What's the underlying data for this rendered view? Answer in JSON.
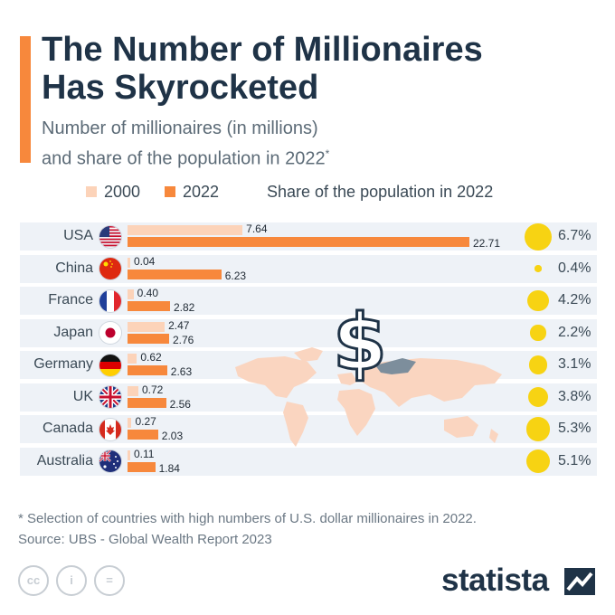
{
  "header": {
    "title_line1": "The Number of Millionaires",
    "title_line2": "Has Skyrocketed",
    "subtitle_line1": "Number of millionaires (in millions)",
    "subtitle_line2": "and share of the population in 2022",
    "subtitle_mark": "*"
  },
  "legend": {
    "s2000": "2000",
    "s2022": "2022",
    "share": "Share of the population in 2022"
  },
  "colors": {
    "bar_2000": "#fcd3b9",
    "bar_2022": "#f7883c",
    "share_dot": "#f7d313",
    "title": "#1f3347",
    "accent": "#f7883c"
  },
  "chart_data": {
    "type": "bar",
    "orientation": "horizontal",
    "categories": [
      "USA",
      "China",
      "France",
      "Japan",
      "Germany",
      "UK",
      "Canada",
      "Australia"
    ],
    "series": [
      {
        "name": "2000",
        "values": [
          7.64,
          0.04,
          0.4,
          2.47,
          0.62,
          0.72,
          0.27,
          0.11
        ],
        "labels": [
          "7.64",
          "0.04",
          "0.40",
          "2.47",
          "0.62",
          "0.72",
          "0.27",
          "0.11"
        ]
      },
      {
        "name": "2022",
        "values": [
          22.71,
          6.23,
          2.82,
          2.76,
          2.63,
          2.56,
          2.03,
          1.84
        ],
        "labels": [
          "22.71",
          "6.23",
          "2.82",
          "2.76",
          "2.63",
          "2.56",
          "2.03",
          "1.84"
        ]
      },
      {
        "name": "Share of the population in 2022",
        "values": [
          6.7,
          0.4,
          4.2,
          2.2,
          3.1,
          3.8,
          5.3,
          5.1
        ],
        "labels": [
          "6.7%",
          "0.4%",
          "4.2%",
          "2.2%",
          "3.1%",
          "3.8%",
          "5.3%",
          "5.1%"
        ]
      }
    ],
    "flags": [
      "flag-usa-icon",
      "flag-china-icon",
      "flag-france-icon",
      "flag-japan-icon",
      "flag-germany-icon",
      "flag-uk-icon",
      "flag-canada-icon",
      "flag-australia-icon"
    ],
    "xlim": [
      0,
      22.71
    ]
  },
  "footer": {
    "note": "* Selection of countries with high numbers of U.S. dollar millionaires in 2022.",
    "source": "Source: UBS - Global Wealth Report 2023",
    "logo": "statista",
    "cc_icons": [
      "cc",
      "i",
      "="
    ]
  }
}
